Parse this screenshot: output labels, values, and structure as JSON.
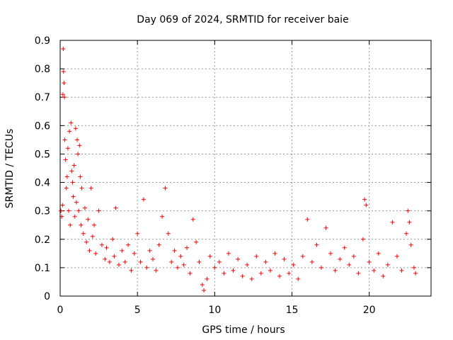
{
  "chart_data": {
    "type": "scatter",
    "title": "Day 069 of 2024, SRMTID for receiver baie",
    "xlabel": "GPS time / hours",
    "ylabel": "SRMTID / TECUs",
    "xlim": [
      0,
      24
    ],
    "ylim": [
      0,
      0.9
    ],
    "xticks": [
      0,
      5,
      10,
      15,
      20
    ],
    "yticks": [
      0,
      0.1,
      0.2,
      0.3,
      0.4,
      0.5,
      0.6,
      0.7,
      0.8,
      0.9
    ],
    "xtick_labels": [
      "0",
      "5",
      "10",
      "15",
      "20"
    ],
    "ytick_labels": [
      "0",
      "0.1",
      "0.2",
      "0.3",
      "0.4",
      "0.5",
      "0.6",
      "0.7",
      "0.8",
      "0.9"
    ],
    "grid": true,
    "marker": "plus",
    "color": "#ff0000",
    "series": [
      {
        "name": "SRMTID",
        "points": [
          [
            0.05,
            0.3
          ],
          [
            0.1,
            0.28
          ],
          [
            0.15,
            0.32
          ],
          [
            0.18,
            0.71
          ],
          [
            0.2,
            0.87
          ],
          [
            0.22,
            0.79
          ],
          [
            0.25,
            0.75
          ],
          [
            0.28,
            0.7
          ],
          [
            0.3,
            0.55
          ],
          [
            0.35,
            0.48
          ],
          [
            0.4,
            0.38
          ],
          [
            0.45,
            0.42
          ],
          [
            0.5,
            0.52
          ],
          [
            0.55,
            0.3
          ],
          [
            0.6,
            0.58
          ],
          [
            0.65,
            0.25
          ],
          [
            0.7,
            0.61
          ],
          [
            0.75,
            0.44
          ],
          [
            0.8,
            0.4
          ],
          [
            0.85,
            0.35
          ],
          [
            0.9,
            0.46
          ],
          [
            0.95,
            0.28
          ],
          [
            1.0,
            0.59
          ],
          [
            1.05,
            0.33
          ],
          [
            1.1,
            0.55
          ],
          [
            1.15,
            0.5
          ],
          [
            1.2,
            0.3
          ],
          [
            1.25,
            0.53
          ],
          [
            1.3,
            0.42
          ],
          [
            1.35,
            0.25
          ],
          [
            1.4,
            0.38
          ],
          [
            1.5,
            0.22
          ],
          [
            1.6,
            0.31
          ],
          [
            1.7,
            0.19
          ],
          [
            1.8,
            0.27
          ],
          [
            1.9,
            0.16
          ],
          [
            2.0,
            0.38
          ],
          [
            2.1,
            0.21
          ],
          [
            2.2,
            0.25
          ],
          [
            2.3,
            0.15
          ],
          [
            2.5,
            0.3
          ],
          [
            2.7,
            0.18
          ],
          [
            2.9,
            0.13
          ],
          [
            3.0,
            0.17
          ],
          [
            3.2,
            0.12
          ],
          [
            3.4,
            0.2
          ],
          [
            3.5,
            0.14
          ],
          [
            3.6,
            0.31
          ],
          [
            3.8,
            0.11
          ],
          [
            4.0,
            0.16
          ],
          [
            4.2,
            0.12
          ],
          [
            4.4,
            0.18
          ],
          [
            4.6,
            0.09
          ],
          [
            4.8,
            0.15
          ],
          [
            5.0,
            0.22
          ],
          [
            5.2,
            0.12
          ],
          [
            5.4,
            0.34
          ],
          [
            5.6,
            0.1
          ],
          [
            5.8,
            0.16
          ],
          [
            6.0,
            0.13
          ],
          [
            6.2,
            0.09
          ],
          [
            6.4,
            0.18
          ],
          [
            6.6,
            0.28
          ],
          [
            6.8,
            0.38
          ],
          [
            7.0,
            0.22
          ],
          [
            7.2,
            0.12
          ],
          [
            7.4,
            0.16
          ],
          [
            7.6,
            0.1
          ],
          [
            7.8,
            0.14
          ],
          [
            8.0,
            0.11
          ],
          [
            8.2,
            0.17
          ],
          [
            8.4,
            0.08
          ],
          [
            8.6,
            0.27
          ],
          [
            8.8,
            0.19
          ],
          [
            9.0,
            0.12
          ],
          [
            9.2,
            0.04
          ],
          [
            9.3,
            0.02
          ],
          [
            9.5,
            0.06
          ],
          [
            9.7,
            0.14
          ],
          [
            10.0,
            0.1
          ],
          [
            10.3,
            0.12
          ],
          [
            10.6,
            0.08
          ],
          [
            10.9,
            0.15
          ],
          [
            11.2,
            0.09
          ],
          [
            11.5,
            0.13
          ],
          [
            11.8,
            0.07
          ],
          [
            12.1,
            0.11
          ],
          [
            12.4,
            0.06
          ],
          [
            12.7,
            0.14
          ],
          [
            13.0,
            0.08
          ],
          [
            13.3,
            0.12
          ],
          [
            13.6,
            0.09
          ],
          [
            13.9,
            0.15
          ],
          [
            14.2,
            0.07
          ],
          [
            14.5,
            0.13
          ],
          [
            14.8,
            0.08
          ],
          [
            15.1,
            0.11
          ],
          [
            15.4,
            0.06
          ],
          [
            15.7,
            0.14
          ],
          [
            16.0,
            0.27
          ],
          [
            16.3,
            0.12
          ],
          [
            16.6,
            0.18
          ],
          [
            16.9,
            0.1
          ],
          [
            17.2,
            0.24
          ],
          [
            17.5,
            0.15
          ],
          [
            17.8,
            0.09
          ],
          [
            18.1,
            0.13
          ],
          [
            18.4,
            0.17
          ],
          [
            18.7,
            0.11
          ],
          [
            19.0,
            0.14
          ],
          [
            19.3,
            0.08
          ],
          [
            19.6,
            0.2
          ],
          [
            19.7,
            0.34
          ],
          [
            19.8,
            0.32
          ],
          [
            20.0,
            0.12
          ],
          [
            20.3,
            0.09
          ],
          [
            20.6,
            0.15
          ],
          [
            20.9,
            0.07
          ],
          [
            21.2,
            0.11
          ],
          [
            21.5,
            0.26
          ],
          [
            21.8,
            0.14
          ],
          [
            22.1,
            0.09
          ],
          [
            22.4,
            0.22
          ],
          [
            22.5,
            0.3
          ],
          [
            22.6,
            0.26
          ],
          [
            22.7,
            0.18
          ],
          [
            22.9,
            0.1
          ],
          [
            23.0,
            0.08
          ]
        ]
      }
    ]
  }
}
